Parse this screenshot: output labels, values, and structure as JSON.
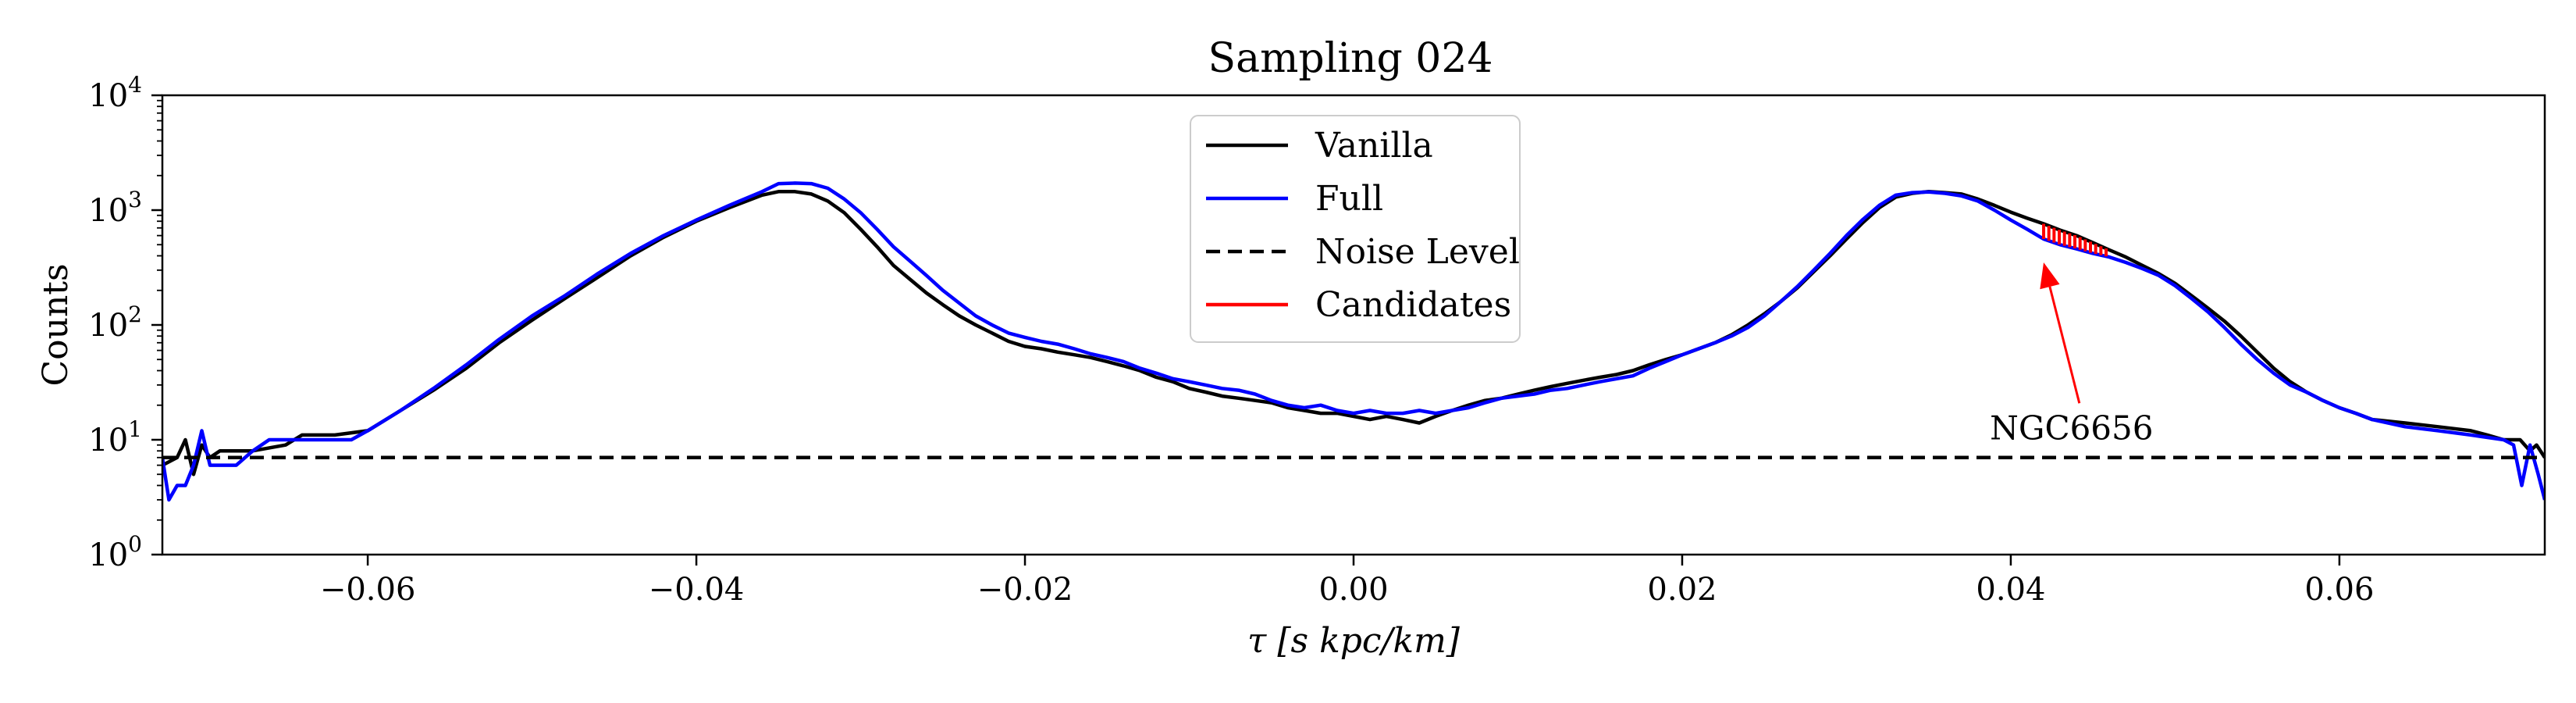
{
  "chart_data": {
    "type": "line",
    "title": "Sampling 024",
    "xlabel": "τ [s kpc/km]",
    "ylabel": "Counts",
    "yscale": "log",
    "xlim": [
      -0.0725,
      0.0725
    ],
    "ylim": [
      1,
      10000
    ],
    "x_ticks": [
      -0.06,
      -0.04,
      -0.02,
      0.0,
      0.02,
      0.04,
      0.06
    ],
    "x_tick_labels": [
      "−0.06",
      "−0.04",
      "−0.02",
      "0.00",
      "0.02",
      "0.04",
      "0.06"
    ],
    "y_ticks": [
      1,
      10,
      100,
      1000,
      10000
    ],
    "y_tick_labels": [
      {
        "base": "10",
        "exp": "0"
      },
      {
        "base": "10",
        "exp": "1"
      },
      {
        "base": "10",
        "exp": "2"
      },
      {
        "base": "10",
        "exp": "3"
      },
      {
        "base": "10",
        "exp": "4"
      }
    ],
    "grid": false,
    "legend_position": "top-center",
    "series": [
      {
        "name": "Vanilla",
        "color": "#000000",
        "style": "solid",
        "points": [
          [
            -0.0725,
            6
          ],
          [
            -0.0716,
            7
          ],
          [
            -0.0711,
            10
          ],
          [
            -0.0706,
            5
          ],
          [
            -0.0701,
            9
          ],
          [
            -0.0696,
            7
          ],
          [
            -0.069,
            8
          ],
          [
            -0.067,
            8
          ],
          [
            -0.065,
            9
          ],
          [
            -0.064,
            11
          ],
          [
            -0.062,
            11
          ],
          [
            -0.06,
            12
          ],
          [
            -0.058,
            18
          ],
          [
            -0.056,
            27
          ],
          [
            -0.054,
            42
          ],
          [
            -0.052,
            70
          ],
          [
            -0.05,
            110
          ],
          [
            -0.048,
            170
          ],
          [
            -0.046,
            260
          ],
          [
            -0.044,
            400
          ],
          [
            -0.042,
            580
          ],
          [
            -0.04,
            800
          ],
          [
            -0.038,
            1050
          ],
          [
            -0.036,
            1350
          ],
          [
            -0.035,
            1450
          ],
          [
            -0.034,
            1450
          ],
          [
            -0.033,
            1380
          ],
          [
            -0.032,
            1200
          ],
          [
            -0.031,
            950
          ],
          [
            -0.03,
            680
          ],
          [
            -0.029,
            480
          ],
          [
            -0.028,
            330
          ],
          [
            -0.027,
            250
          ],
          [
            -0.026,
            190
          ],
          [
            -0.025,
            150
          ],
          [
            -0.024,
            120
          ],
          [
            -0.023,
            100
          ],
          [
            -0.022,
            85
          ],
          [
            -0.021,
            72
          ],
          [
            -0.02,
            65
          ],
          [
            -0.019,
            62
          ],
          [
            -0.018,
            58
          ],
          [
            -0.017,
            55
          ],
          [
            -0.016,
            52
          ],
          [
            -0.015,
            48
          ],
          [
            -0.014,
            44
          ],
          [
            -0.013,
            40
          ],
          [
            -0.012,
            35
          ],
          [
            -0.011,
            32
          ],
          [
            -0.01,
            28
          ],
          [
            -0.009,
            26
          ],
          [
            -0.008,
            24
          ],
          [
            -0.007,
            23
          ],
          [
            -0.006,
            22
          ],
          [
            -0.005,
            21
          ],
          [
            -0.004,
            19
          ],
          [
            -0.003,
            18
          ],
          [
            -0.002,
            17
          ],
          [
            -0.001,
            17
          ],
          [
            0.0,
            16
          ],
          [
            0.001,
            15
          ],
          [
            0.002,
            16
          ],
          [
            0.003,
            15
          ],
          [
            0.004,
            14
          ],
          [
            0.005,
            16
          ],
          [
            0.006,
            18
          ],
          [
            0.007,
            20
          ],
          [
            0.008,
            22
          ],
          [
            0.009,
            23
          ],
          [
            0.01,
            25
          ],
          [
            0.011,
            27
          ],
          [
            0.012,
            29
          ],
          [
            0.013,
            31
          ],
          [
            0.014,
            33
          ],
          [
            0.015,
            35
          ],
          [
            0.016,
            37
          ],
          [
            0.017,
            40
          ],
          [
            0.018,
            45
          ],
          [
            0.019,
            50
          ],
          [
            0.02,
            55
          ],
          [
            0.021,
            62
          ],
          [
            0.022,
            70
          ],
          [
            0.023,
            82
          ],
          [
            0.024,
            100
          ],
          [
            0.025,
            125
          ],
          [
            0.026,
            160
          ],
          [
            0.027,
            210
          ],
          [
            0.028,
            290
          ],
          [
            0.029,
            400
          ],
          [
            0.03,
            560
          ],
          [
            0.031,
            780
          ],
          [
            0.032,
            1050
          ],
          [
            0.033,
            1300
          ],
          [
            0.034,
            1400
          ],
          [
            0.035,
            1450
          ],
          [
            0.036,
            1420
          ],
          [
            0.037,
            1380
          ],
          [
            0.038,
            1250
          ],
          [
            0.039,
            1100
          ],
          [
            0.04,
            960
          ],
          [
            0.041,
            850
          ],
          [
            0.042,
            760
          ],
          [
            0.043,
            670
          ],
          [
            0.044,
            600
          ],
          [
            0.045,
            520
          ],
          [
            0.046,
            450
          ],
          [
            0.047,
            390
          ],
          [
            0.048,
            330
          ],
          [
            0.049,
            280
          ],
          [
            0.05,
            230
          ],
          [
            0.051,
            180
          ],
          [
            0.052,
            140
          ],
          [
            0.053,
            108
          ],
          [
            0.054,
            80
          ],
          [
            0.055,
            58
          ],
          [
            0.056,
            42
          ],
          [
            0.057,
            32
          ],
          [
            0.058,
            26
          ],
          [
            0.059,
            22
          ],
          [
            0.06,
            19
          ],
          [
            0.061,
            17
          ],
          [
            0.062,
            15
          ],
          [
            0.064,
            14
          ],
          [
            0.066,
            13
          ],
          [
            0.068,
            12
          ],
          [
            0.069,
            11
          ],
          [
            0.07,
            10
          ],
          [
            0.071,
            10
          ],
          [
            0.0716,
            8
          ],
          [
            0.072,
            9
          ],
          [
            0.0725,
            7
          ]
        ]
      },
      {
        "name": "Full",
        "color": "#0000ff",
        "style": "solid",
        "points": [
          [
            -0.0725,
            7
          ],
          [
            -0.0721,
            3
          ],
          [
            -0.0716,
            4
          ],
          [
            -0.0711,
            4
          ],
          [
            -0.0706,
            6
          ],
          [
            -0.0701,
            12
          ],
          [
            -0.0696,
            6
          ],
          [
            -0.069,
            6
          ],
          [
            -0.068,
            6
          ],
          [
            -0.067,
            8
          ],
          [
            -0.066,
            10
          ],
          [
            -0.065,
            10
          ],
          [
            -0.063,
            10
          ],
          [
            -0.061,
            10
          ],
          [
            -0.06,
            12
          ],
          [
            -0.058,
            18
          ],
          [
            -0.056,
            28
          ],
          [
            -0.054,
            45
          ],
          [
            -0.052,
            75
          ],
          [
            -0.05,
            120
          ],
          [
            -0.048,
            180
          ],
          [
            -0.046,
            280
          ],
          [
            -0.044,
            420
          ],
          [
            -0.042,
            600
          ],
          [
            -0.04,
            820
          ],
          [
            -0.038,
            1100
          ],
          [
            -0.036,
            1450
          ],
          [
            -0.035,
            1700
          ],
          [
            -0.034,
            1720
          ],
          [
            -0.033,
            1700
          ],
          [
            -0.032,
            1550
          ],
          [
            -0.031,
            1250
          ],
          [
            -0.03,
            950
          ],
          [
            -0.029,
            680
          ],
          [
            -0.028,
            480
          ],
          [
            -0.027,
            360
          ],
          [
            -0.026,
            270
          ],
          [
            -0.025,
            200
          ],
          [
            -0.024,
            155
          ],
          [
            -0.023,
            120
          ],
          [
            -0.022,
            100
          ],
          [
            -0.021,
            85
          ],
          [
            -0.02,
            78
          ],
          [
            -0.019,
            72
          ],
          [
            -0.018,
            68
          ],
          [
            -0.017,
            62
          ],
          [
            -0.016,
            56
          ],
          [
            -0.015,
            52
          ],
          [
            -0.014,
            48
          ],
          [
            -0.013,
            42
          ],
          [
            -0.012,
            38
          ],
          [
            -0.011,
            34
          ],
          [
            -0.01,
            32
          ],
          [
            -0.009,
            30
          ],
          [
            -0.008,
            28
          ],
          [
            -0.007,
            27
          ],
          [
            -0.006,
            25
          ],
          [
            -0.005,
            22
          ],
          [
            -0.004,
            20
          ],
          [
            -0.003,
            19
          ],
          [
            -0.002,
            20
          ],
          [
            -0.001,
            18
          ],
          [
            0.0,
            17
          ],
          [
            0.001,
            18
          ],
          [
            0.002,
            17
          ],
          [
            0.003,
            17
          ],
          [
            0.004,
            18
          ],
          [
            0.005,
            17
          ],
          [
            0.006,
            18
          ],
          [
            0.007,
            19
          ],
          [
            0.008,
            21
          ],
          [
            0.009,
            23
          ],
          [
            0.01,
            24
          ],
          [
            0.011,
            25
          ],
          [
            0.012,
            27
          ],
          [
            0.013,
            28
          ],
          [
            0.014,
            30
          ],
          [
            0.015,
            32
          ],
          [
            0.016,
            34
          ],
          [
            0.017,
            36
          ],
          [
            0.018,
            42
          ],
          [
            0.019,
            48
          ],
          [
            0.02,
            55
          ],
          [
            0.021,
            62
          ],
          [
            0.022,
            70
          ],
          [
            0.023,
            80
          ],
          [
            0.024,
            95
          ],
          [
            0.025,
            120
          ],
          [
            0.026,
            160
          ],
          [
            0.027,
            215
          ],
          [
            0.028,
            300
          ],
          [
            0.029,
            420
          ],
          [
            0.03,
            600
          ],
          [
            0.031,
            830
          ],
          [
            0.032,
            1100
          ],
          [
            0.033,
            1350
          ],
          [
            0.034,
            1420
          ],
          [
            0.035,
            1440
          ],
          [
            0.036,
            1400
          ],
          [
            0.037,
            1330
          ],
          [
            0.038,
            1200
          ],
          [
            0.039,
            1000
          ],
          [
            0.04,
            820
          ],
          [
            0.041,
            680
          ],
          [
            0.042,
            560
          ],
          [
            0.043,
            500
          ],
          [
            0.044,
            460
          ],
          [
            0.045,
            420
          ],
          [
            0.046,
            390
          ],
          [
            0.047,
            350
          ],
          [
            0.048,
            310
          ],
          [
            0.049,
            270
          ],
          [
            0.05,
            220
          ],
          [
            0.051,
            170
          ],
          [
            0.052,
            130
          ],
          [
            0.053,
            95
          ],
          [
            0.054,
            68
          ],
          [
            0.055,
            50
          ],
          [
            0.056,
            38
          ],
          [
            0.057,
            30
          ],
          [
            0.058,
            26
          ],
          [
            0.059,
            22
          ],
          [
            0.06,
            19
          ],
          [
            0.061,
            17
          ],
          [
            0.062,
            15
          ],
          [
            0.064,
            13
          ],
          [
            0.066,
            12
          ],
          [
            0.068,
            11
          ],
          [
            0.07,
            10
          ],
          [
            0.0706,
            9
          ],
          [
            0.0711,
            4
          ],
          [
            0.0716,
            9
          ],
          [
            0.0721,
            5
          ],
          [
            0.0725,
            3
          ]
        ]
      },
      {
        "name": "Noise Level",
        "color": "#000000",
        "style": "dashed",
        "points": [
          [
            -0.0725,
            7
          ],
          [
            0.0725,
            7
          ]
        ]
      },
      {
        "name": "Candidates",
        "color": "#ff0000",
        "style": "solid",
        "x_range": [
          0.042,
          0.0458
        ]
      }
    ],
    "annotations": [
      {
        "text": "NGC6656",
        "arrow_tip": [
          0.042,
          350
        ],
        "text_at": [
          0.0437,
          13
        ],
        "color": "#ff0000"
      }
    ]
  }
}
